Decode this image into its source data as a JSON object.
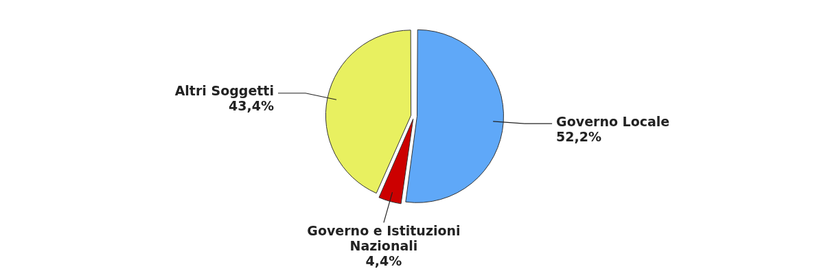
{
  "chart_data": {
    "type": "pie",
    "categories": [
      "Governo Locale",
      "Governo e Istituzioni Nazionali",
      "Altri Soggetti"
    ],
    "values": [
      52.2,
      4.4,
      43.4
    ],
    "colors": [
      "#5fa8f8",
      "#cc0000",
      "#e8f060"
    ],
    "value_labels": [
      "52,2%",
      "4,4%",
      "43,4%"
    ],
    "legend": false
  }
}
